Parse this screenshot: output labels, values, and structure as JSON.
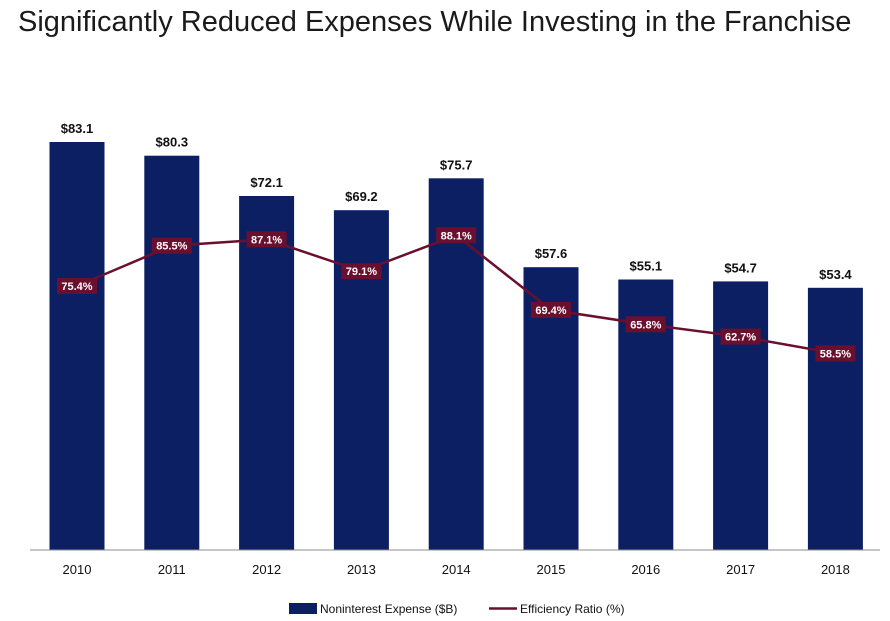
{
  "title": "Significantly Reduced Expenses While Investing in the Franchise",
  "colors": {
    "bar": "#0d1f63",
    "line": "#6b0f2e",
    "axis": "#8c8c8c"
  },
  "chart_data": {
    "type": "bar",
    "categories": [
      "2010",
      "2011",
      "2012",
      "2013",
      "2014",
      "2015",
      "2016",
      "2017",
      "2018"
    ],
    "series": [
      {
        "name": "Noninterest Expense ($B)",
        "type": "bar",
        "values": [
          83.1,
          80.3,
          72.1,
          69.2,
          75.7,
          57.6,
          55.1,
          54.7,
          53.4
        ],
        "labels": [
          "$83.1",
          "$80.3",
          "$72.1",
          "$69.2",
          "$75.7",
          "$57.6",
          "$55.1",
          "$54.7",
          "$53.4"
        ]
      },
      {
        "name": "Efficiency Ratio (%)",
        "type": "line",
        "values": [
          75.4,
          85.5,
          87.1,
          79.1,
          88.1,
          69.4,
          65.8,
          62.7,
          58.5
        ],
        "labels": [
          "75.4%",
          "85.5%",
          "87.1%",
          "79.1%",
          "88.1%",
          "69.4%",
          "65.8%",
          "62.7%",
          "58.5%"
        ]
      }
    ],
    "legend": "bottom",
    "grid": false
  }
}
